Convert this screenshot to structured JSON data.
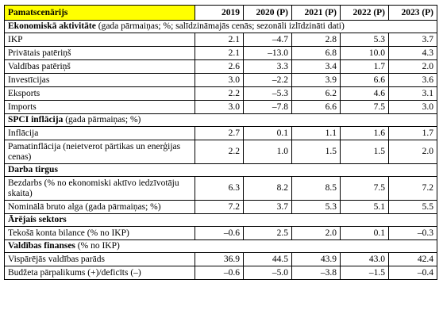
{
  "header": {
    "label": "Pamatscenārijs",
    "years": [
      "2019",
      "2020 (P)",
      "2021 (P)",
      "2022 (P)",
      "2023 (P)"
    ]
  },
  "sections": [
    {
      "title": "Ekonomiskā aktivitāte",
      "note": " (gada pārmaiņas; %; salīdzināmajās cenās; sezonāli izlīdzināti dati)",
      "rows": [
        {
          "label": "IKP",
          "values": [
            "2.1",
            "–4.7",
            "2.8",
            "5.3",
            "3.7"
          ]
        },
        {
          "label": "Privātais patēriņš",
          "values": [
            "2.1",
            "–13.0",
            "6.8",
            "10.0",
            "4.3"
          ]
        },
        {
          "label": "Valdības patēriņš",
          "values": [
            "2.6",
            "3.3",
            "3.4",
            "1.7",
            "2.0"
          ]
        },
        {
          "label": "Investīcijas",
          "values": [
            "3.0",
            "–2.2",
            "3.9",
            "6.6",
            "3.6"
          ]
        },
        {
          "label": "Eksports",
          "values": [
            "2.2",
            "–5.3",
            "6.2",
            "4.6",
            "3.1"
          ]
        },
        {
          "label": "Imports",
          "values": [
            "3.0",
            "–7.8",
            "6.6",
            "7.5",
            "3.0"
          ]
        }
      ]
    },
    {
      "title": "SPCI inflācija",
      "note": " (gada pārmaiņas; %)",
      "rows": [
        {
          "label": "Inflācija",
          "values": [
            "2.7",
            "0.1",
            "1.1",
            "1.6",
            "1.7"
          ]
        },
        {
          "label": "Pamatinflācija (neietverot pārtikas un enerģijas cenas)",
          "values": [
            "2.2",
            "1.0",
            "1.5",
            "1.5",
            "2.0"
          ],
          "tall": true
        }
      ]
    },
    {
      "title": "Darba tirgus",
      "note": "",
      "rows": [
        {
          "label": "Bezdarbs (% no ekonomiski aktīvo iedzīvotāju skaita)",
          "values": [
            "6.3",
            "8.2",
            "8.5",
            "7.5",
            "7.2"
          ],
          "tall": true
        },
        {
          "label": "Nominālā bruto alga (gada pārmaiņas; %)",
          "values": [
            "7.2",
            "3.7",
            "5.3",
            "5.1",
            "5.5"
          ]
        }
      ]
    },
    {
      "title": "Ārējais sektors",
      "note": "",
      "rows": [
        {
          "label": "Tekošā konta bilance (% no IKP)",
          "values": [
            "–0.6",
            "2.5",
            "2.0",
            "0.1",
            "–0.3"
          ]
        }
      ]
    },
    {
      "title": "Valdības finanses",
      "note": " (% no IKP)",
      "rows": [
        {
          "label": "Vispārējās valdības parāds",
          "values": [
            "36.9",
            "44.5",
            "43.9",
            "43.0",
            "42.4"
          ]
        },
        {
          "label": "Budžeta pārpalikums (+)/deficīts (–)",
          "values": [
            "–0.6",
            "–5.0",
            "–3.8",
            "–1.5",
            "–0.4"
          ]
        }
      ]
    }
  ]
}
